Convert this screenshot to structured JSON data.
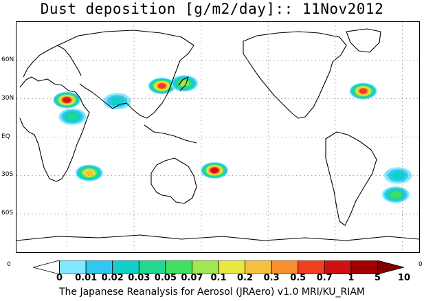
{
  "title": "Dust deposition [g/m2/day]:: 11Nov2012",
  "lat_labels": [
    "60N",
    "30N",
    "EQ",
    "30S",
    "60S"
  ],
  "left_edge_label": "0",
  "right_edge_label": "0",
  "colorbar": {
    "levels": [
      "0",
      "0.01",
      "0.02",
      "0.03",
      "0.05",
      "0.07",
      "0.1",
      "0.2",
      "0.3",
      "0.5",
      "0.7",
      "1",
      "5",
      "10"
    ],
    "colors": [
      "#ffffff",
      "#80e8ff",
      "#30c8f0",
      "#10d0c8",
      "#20d890",
      "#40e060",
      "#a0e850",
      "#e8e840",
      "#f8c040",
      "#f89030",
      "#f04020",
      "#d01010",
      "#a00000",
      "#800000"
    ]
  },
  "footer": "The Japanese Reanalysis for Aerosol (JRAero) v1.0 MRI/KU_RIAM",
  "map": {
    "central_longitude": 135,
    "lat_range": [
      -90,
      90
    ],
    "gridline_latitudes": [
      60,
      30,
      0,
      -30,
      -60
    ],
    "gridline_longitudes": [
      -120,
      -60,
      0,
      60,
      120,
      180
    ],
    "dust_plumes": [
      {
        "region": "Sahara",
        "lon": 0,
        "lat": 29,
        "level": 11
      },
      {
        "region": "West Africa",
        "lon": 5,
        "lat": 16,
        "level": 4
      },
      {
        "region": "Arabia",
        "lon": 45,
        "lat": 28,
        "level": 3
      },
      {
        "region": "Taklimakan",
        "lon": 85,
        "lat": 40,
        "level": 10
      },
      {
        "region": "Gobi",
        "lon": 105,
        "lat": 42,
        "level": 6
      },
      {
        "region": "Australia",
        "lon": 132,
        "lat": -26,
        "level": 11
      },
      {
        "region": "Central US",
        "lon": -95,
        "lat": 36,
        "level": 10
      },
      {
        "region": "Patagonia",
        "lon": -66,
        "lat": -45,
        "level": 5
      },
      {
        "region": "Argentina",
        "lon": -64,
        "lat": -30,
        "level": 3
      },
      {
        "region": "South Africa",
        "lon": 20,
        "lat": -28,
        "level": 8
      }
    ]
  }
}
